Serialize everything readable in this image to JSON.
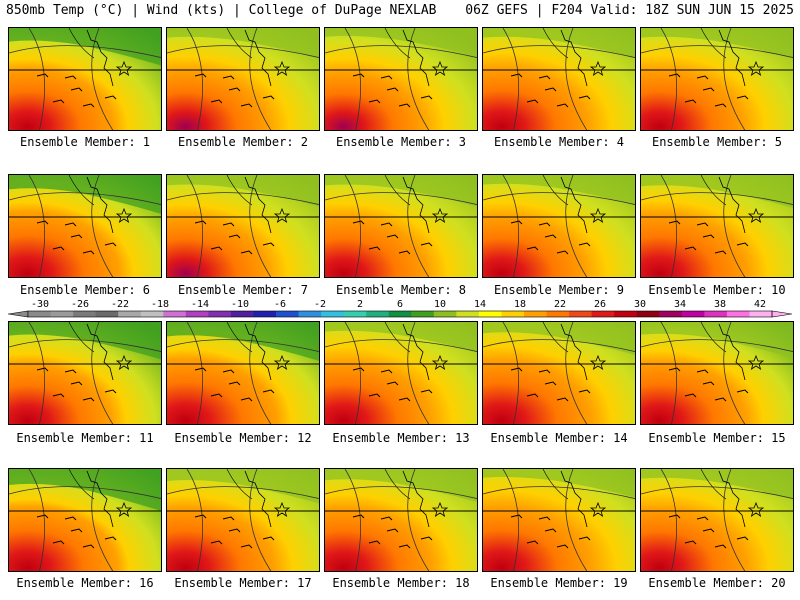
{
  "header": {
    "left_title": "850mb Temp (°C) | Wind (kts) | College of DuPage NEXLAB",
    "right_title": "06Z GEFS | F204 Valid: 18Z SUN JUN 15 2025"
  },
  "members": [
    {
      "label": "Ensemble Member: 1"
    },
    {
      "label": "Ensemble Member: 2"
    },
    {
      "label": "Ensemble Member: 3"
    },
    {
      "label": "Ensemble Member: 4"
    },
    {
      "label": "Ensemble Member: 5"
    },
    {
      "label": "Ensemble Member: 6"
    },
    {
      "label": "Ensemble Member: 7"
    },
    {
      "label": "Ensemble Member: 8"
    },
    {
      "label": "Ensemble Member: 9"
    },
    {
      "label": "Ensemble Member: 10"
    },
    {
      "label": "Ensemble Member: 11"
    },
    {
      "label": "Ensemble Member: 12"
    },
    {
      "label": "Ensemble Member: 13"
    },
    {
      "label": "Ensemble Member: 14"
    },
    {
      "label": "Ensemble Member: 15"
    },
    {
      "label": "Ensemble Member: 16"
    },
    {
      "label": "Ensemble Member: 17"
    },
    {
      "label": "Ensemble Member: 18"
    },
    {
      "label": "Ensemble Member: 19"
    },
    {
      "label": "Ensemble Member: 20"
    }
  ],
  "colorbar": {
    "ticks": [
      "-30",
      "-26",
      "-22",
      "-18",
      "-14",
      "-10",
      "-6",
      "-2",
      "2",
      "6",
      "10",
      "14",
      "18",
      "22",
      "26",
      "30",
      "34",
      "38",
      "42"
    ],
    "colors": [
      "#8a8a8a",
      "#9a9a9a",
      "#7a7a7a",
      "#6a6a6a",
      "#a8a8a8",
      "#c0c0c0",
      "#d070d0",
      "#b040c0",
      "#8030b0",
      "#5020a0",
      "#2020b0",
      "#2050d0",
      "#3090e0",
      "#30c0e0",
      "#30d0b0",
      "#20b080",
      "#109040",
      "#40a020",
      "#90c020",
      "#d0e020",
      "#ffff00",
      "#ffd000",
      "#ffa000",
      "#ff7800",
      "#f04818",
      "#e01818",
      "#c00010",
      "#900010",
      "#a00060",
      "#c000a0",
      "#e030c0",
      "#ff70e0",
      "#ffb0f0"
    ]
  }
}
